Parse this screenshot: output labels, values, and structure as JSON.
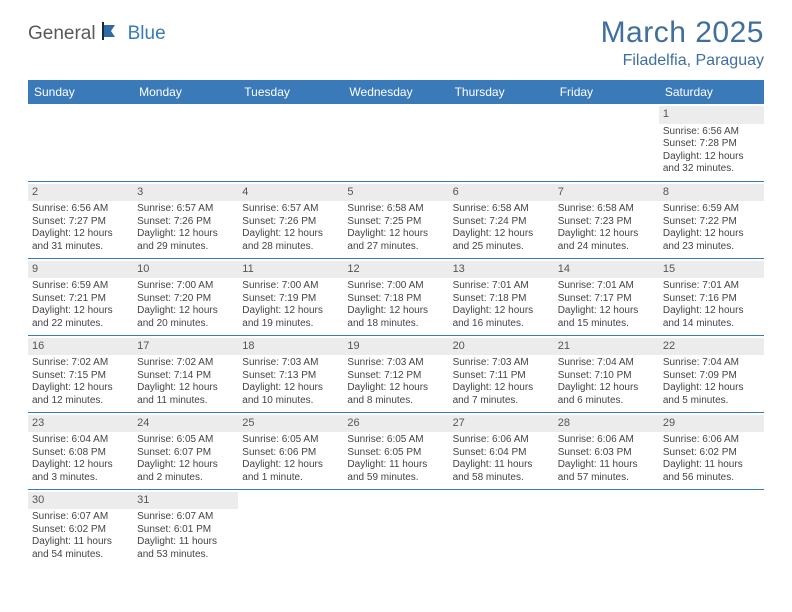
{
  "brand": {
    "part1": "General",
    "part2": "Blue"
  },
  "title": "March 2025",
  "location": "Filadelfia, Paraguay",
  "colors": {
    "header_bg": "#3a7ab8",
    "header_text": "#ffffff",
    "title_color": "#3f6f9e",
    "daynum_bg": "#ececec",
    "row_border": "#3a7ab8",
    "empty_bg": "#f0f0f0",
    "body_text": "#444444"
  },
  "day_headers": [
    "Sunday",
    "Monday",
    "Tuesday",
    "Wednesday",
    "Thursday",
    "Friday",
    "Saturday"
  ],
  "weeks": [
    [
      {
        "empty": true
      },
      {
        "empty": true
      },
      {
        "empty": true
      },
      {
        "empty": true
      },
      {
        "empty": true
      },
      {
        "empty": true
      },
      {
        "n": "1",
        "sunrise": "Sunrise: 6:56 AM",
        "sunset": "Sunset: 7:28 PM",
        "day1": "Daylight: 12 hours",
        "day2": "and 32 minutes."
      }
    ],
    [
      {
        "n": "2",
        "sunrise": "Sunrise: 6:56 AM",
        "sunset": "Sunset: 7:27 PM",
        "day1": "Daylight: 12 hours",
        "day2": "and 31 minutes."
      },
      {
        "n": "3",
        "sunrise": "Sunrise: 6:57 AM",
        "sunset": "Sunset: 7:26 PM",
        "day1": "Daylight: 12 hours",
        "day2": "and 29 minutes."
      },
      {
        "n": "4",
        "sunrise": "Sunrise: 6:57 AM",
        "sunset": "Sunset: 7:26 PM",
        "day1": "Daylight: 12 hours",
        "day2": "and 28 minutes."
      },
      {
        "n": "5",
        "sunrise": "Sunrise: 6:58 AM",
        "sunset": "Sunset: 7:25 PM",
        "day1": "Daylight: 12 hours",
        "day2": "and 27 minutes."
      },
      {
        "n": "6",
        "sunrise": "Sunrise: 6:58 AM",
        "sunset": "Sunset: 7:24 PM",
        "day1": "Daylight: 12 hours",
        "day2": "and 25 minutes."
      },
      {
        "n": "7",
        "sunrise": "Sunrise: 6:58 AM",
        "sunset": "Sunset: 7:23 PM",
        "day1": "Daylight: 12 hours",
        "day2": "and 24 minutes."
      },
      {
        "n": "8",
        "sunrise": "Sunrise: 6:59 AM",
        "sunset": "Sunset: 7:22 PM",
        "day1": "Daylight: 12 hours",
        "day2": "and 23 minutes."
      }
    ],
    [
      {
        "n": "9",
        "sunrise": "Sunrise: 6:59 AM",
        "sunset": "Sunset: 7:21 PM",
        "day1": "Daylight: 12 hours",
        "day2": "and 22 minutes."
      },
      {
        "n": "10",
        "sunrise": "Sunrise: 7:00 AM",
        "sunset": "Sunset: 7:20 PM",
        "day1": "Daylight: 12 hours",
        "day2": "and 20 minutes."
      },
      {
        "n": "11",
        "sunrise": "Sunrise: 7:00 AM",
        "sunset": "Sunset: 7:19 PM",
        "day1": "Daylight: 12 hours",
        "day2": "and 19 minutes."
      },
      {
        "n": "12",
        "sunrise": "Sunrise: 7:00 AM",
        "sunset": "Sunset: 7:18 PM",
        "day1": "Daylight: 12 hours",
        "day2": "and 18 minutes."
      },
      {
        "n": "13",
        "sunrise": "Sunrise: 7:01 AM",
        "sunset": "Sunset: 7:18 PM",
        "day1": "Daylight: 12 hours",
        "day2": "and 16 minutes."
      },
      {
        "n": "14",
        "sunrise": "Sunrise: 7:01 AM",
        "sunset": "Sunset: 7:17 PM",
        "day1": "Daylight: 12 hours",
        "day2": "and 15 minutes."
      },
      {
        "n": "15",
        "sunrise": "Sunrise: 7:01 AM",
        "sunset": "Sunset: 7:16 PM",
        "day1": "Daylight: 12 hours",
        "day2": "and 14 minutes."
      }
    ],
    [
      {
        "n": "16",
        "sunrise": "Sunrise: 7:02 AM",
        "sunset": "Sunset: 7:15 PM",
        "day1": "Daylight: 12 hours",
        "day2": "and 12 minutes."
      },
      {
        "n": "17",
        "sunrise": "Sunrise: 7:02 AM",
        "sunset": "Sunset: 7:14 PM",
        "day1": "Daylight: 12 hours",
        "day2": "and 11 minutes."
      },
      {
        "n": "18",
        "sunrise": "Sunrise: 7:03 AM",
        "sunset": "Sunset: 7:13 PM",
        "day1": "Daylight: 12 hours",
        "day2": "and 10 minutes."
      },
      {
        "n": "19",
        "sunrise": "Sunrise: 7:03 AM",
        "sunset": "Sunset: 7:12 PM",
        "day1": "Daylight: 12 hours",
        "day2": "and 8 minutes."
      },
      {
        "n": "20",
        "sunrise": "Sunrise: 7:03 AM",
        "sunset": "Sunset: 7:11 PM",
        "day1": "Daylight: 12 hours",
        "day2": "and 7 minutes."
      },
      {
        "n": "21",
        "sunrise": "Sunrise: 7:04 AM",
        "sunset": "Sunset: 7:10 PM",
        "day1": "Daylight: 12 hours",
        "day2": "and 6 minutes."
      },
      {
        "n": "22",
        "sunrise": "Sunrise: 7:04 AM",
        "sunset": "Sunset: 7:09 PM",
        "day1": "Daylight: 12 hours",
        "day2": "and 5 minutes."
      }
    ],
    [
      {
        "n": "23",
        "sunrise": "Sunrise: 6:04 AM",
        "sunset": "Sunset: 6:08 PM",
        "day1": "Daylight: 12 hours",
        "day2": "and 3 minutes."
      },
      {
        "n": "24",
        "sunrise": "Sunrise: 6:05 AM",
        "sunset": "Sunset: 6:07 PM",
        "day1": "Daylight: 12 hours",
        "day2": "and 2 minutes."
      },
      {
        "n": "25",
        "sunrise": "Sunrise: 6:05 AM",
        "sunset": "Sunset: 6:06 PM",
        "day1": "Daylight: 12 hours",
        "day2": "and 1 minute."
      },
      {
        "n": "26",
        "sunrise": "Sunrise: 6:05 AM",
        "sunset": "Sunset: 6:05 PM",
        "day1": "Daylight: 11 hours",
        "day2": "and 59 minutes."
      },
      {
        "n": "27",
        "sunrise": "Sunrise: 6:06 AM",
        "sunset": "Sunset: 6:04 PM",
        "day1": "Daylight: 11 hours",
        "day2": "and 58 minutes."
      },
      {
        "n": "28",
        "sunrise": "Sunrise: 6:06 AM",
        "sunset": "Sunset: 6:03 PM",
        "day1": "Daylight: 11 hours",
        "day2": "and 57 minutes."
      },
      {
        "n": "29",
        "sunrise": "Sunrise: 6:06 AM",
        "sunset": "Sunset: 6:02 PM",
        "day1": "Daylight: 11 hours",
        "day2": "and 56 minutes."
      }
    ],
    [
      {
        "n": "30",
        "sunrise": "Sunrise: 6:07 AM",
        "sunset": "Sunset: 6:02 PM",
        "day1": "Daylight: 11 hours",
        "day2": "and 54 minutes."
      },
      {
        "n": "31",
        "sunrise": "Sunrise: 6:07 AM",
        "sunset": "Sunset: 6:01 PM",
        "day1": "Daylight: 11 hours",
        "day2": "and 53 minutes."
      },
      {
        "empty": true
      },
      {
        "empty": true
      },
      {
        "empty": true
      },
      {
        "empty": true
      },
      {
        "empty": true
      }
    ]
  ]
}
